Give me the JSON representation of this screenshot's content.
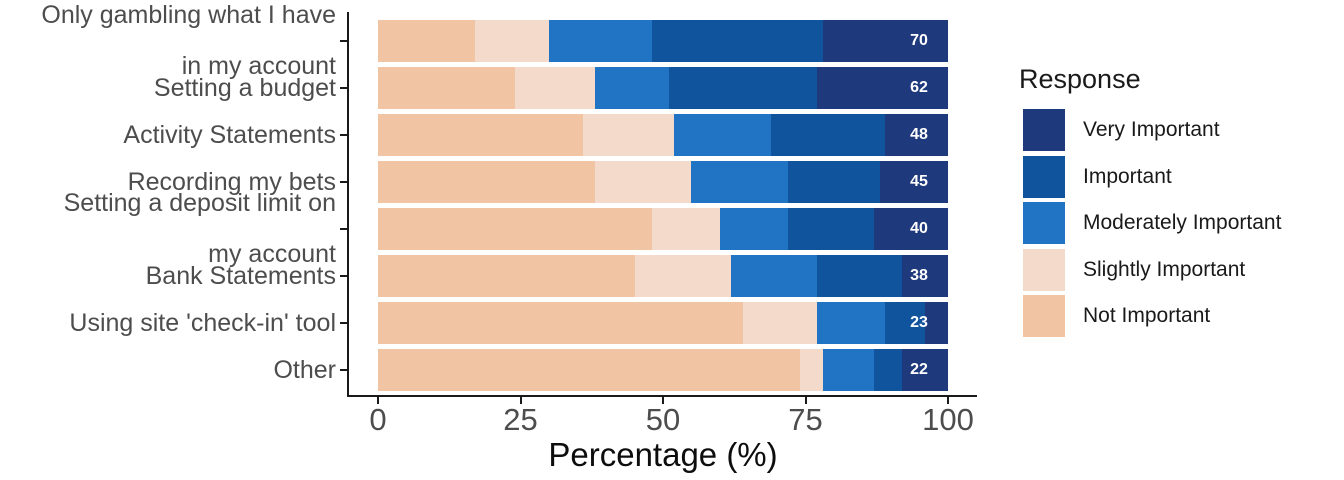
{
  "chart_data": {
    "type": "bar",
    "orientation": "horizontal",
    "stacked": true,
    "xlabel": "Percentage (%)",
    "x_ticks": [
      "0",
      "25",
      "50",
      "75",
      "100"
    ],
    "xlim": [
      0,
      100
    ],
    "grid": false,
    "legend_position": "right",
    "legend_title": "Response",
    "legend": [
      {
        "label": "Very Important",
        "color": "#1e3a7c"
      },
      {
        "label": "Important",
        "color": "#11549e"
      },
      {
        "label": "Moderately Important",
        "color": "#2173c4"
      },
      {
        "label": "Slightly Important",
        "color": "#f3dacb"
      },
      {
        "label": "Not Important",
        "color": "#f1c5a3"
      }
    ],
    "segment_order_left_to_right": [
      "Not Important",
      "Slightly Important",
      "Moderately Important",
      "Important",
      "Very Important"
    ],
    "rows": [
      {
        "category_lines": [
          "Only gambling what I have",
          "in my account"
        ],
        "values": [
          17,
          13,
          18,
          30,
          22
        ],
        "value_label": "70"
      },
      {
        "category_lines": [
          "Setting a budget"
        ],
        "values": [
          24,
          14,
          13,
          26,
          23
        ],
        "value_label": "62"
      },
      {
        "category_lines": [
          "Activity Statements"
        ],
        "values": [
          36,
          16,
          17,
          20,
          11
        ],
        "value_label": "48"
      },
      {
        "category_lines": [
          "Recording my bets"
        ],
        "values": [
          38,
          17,
          17,
          16,
          12
        ],
        "value_label": "45"
      },
      {
        "category_lines": [
          "Setting a deposit limit on",
          "my account"
        ],
        "values": [
          48,
          12,
          12,
          15,
          13
        ],
        "value_label": "40"
      },
      {
        "category_lines": [
          "Bank Statements"
        ],
        "values": [
          45,
          17,
          15,
          15,
          8
        ],
        "value_label": "38"
      },
      {
        "category_lines": [
          "Using site 'check-in' tool"
        ],
        "values": [
          64,
          13,
          12,
          7,
          4
        ],
        "value_label": "23"
      },
      {
        "category_lines": [
          "Other"
        ],
        "values": [
          74,
          4,
          9,
          5,
          8
        ],
        "value_label": "22"
      }
    ]
  }
}
